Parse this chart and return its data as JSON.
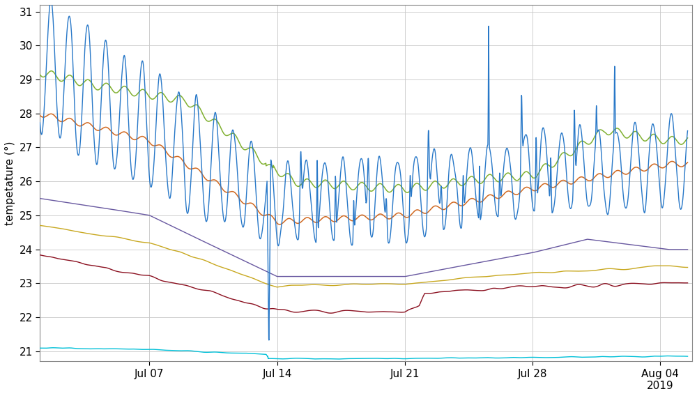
{
  "ylabel": "tempetature (°)",
  "ylim": [
    20.7,
    31.2
  ],
  "yticks": [
    21,
    22,
    23,
    24,
    25,
    26,
    27,
    28,
    29,
    30,
    31
  ],
  "background_color": "#ffffff",
  "grid_color": "#c8c8c8",
  "line_colors": {
    "blue": "#2878C8",
    "green": "#80B030",
    "orange": "#D06820",
    "purple": "#6858A0",
    "yellow": "#C8A820",
    "darkred": "#8B1020",
    "cyan": "#00C0D8"
  },
  "xtick_labels": [
    "Jul 07",
    "Jul 14",
    "Jul 21",
    "Jul 28",
    "Aug 04\n2019"
  ],
  "figsize": [
    10.0,
    5.68
  ],
  "dpi": 100
}
